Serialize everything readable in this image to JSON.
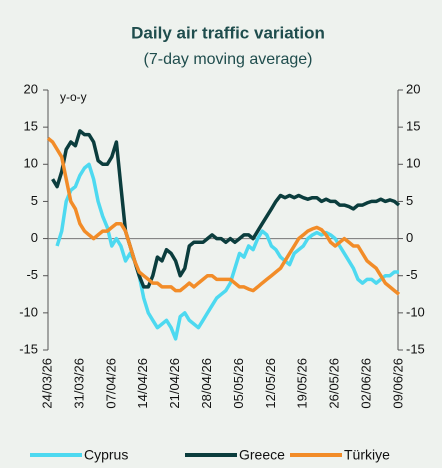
{
  "chart_data": {
    "type": "line",
    "title": "Daily air traffic variation",
    "subtitle": "(7-day moving average)",
    "y_label": "y-o-y",
    "categories": [
      "24/03/26",
      null,
      null,
      null,
      null,
      null,
      null,
      "31/03/26",
      null,
      null,
      null,
      null,
      null,
      null,
      "07/04/26",
      null,
      null,
      null,
      null,
      null,
      null,
      "14/04/26",
      null,
      null,
      null,
      null,
      null,
      null,
      "21/04/26",
      null,
      null,
      null,
      null,
      null,
      null,
      "28/04/26",
      null,
      null,
      null,
      null,
      null,
      null,
      "05/05/26",
      null,
      null,
      null,
      null,
      null,
      null,
      "12/05/26",
      null,
      null,
      null,
      null,
      null,
      null,
      "19/05/26",
      null,
      null,
      null,
      null,
      null,
      null,
      "26/05/26",
      null,
      null,
      null,
      null,
      null,
      null,
      "02/06/26",
      null,
      null,
      null,
      null,
      null,
      null,
      "09/06/26"
    ],
    "series": [
      {
        "name": "Cyprus",
        "color": "#4dd9f0",
        "values": [
          null,
          null,
          -1,
          1,
          5,
          6.5,
          7,
          8.5,
          9.5,
          10,
          8,
          5,
          3,
          1.5,
          -1,
          0,
          -1,
          -3,
          -2,
          -3,
          -5,
          -8,
          -10,
          -11,
          -12,
          -11.5,
          -11,
          -12,
          -13.5,
          -10.5,
          -10,
          -11,
          -11.5,
          -12,
          -11,
          -10,
          -9,
          -8,
          -7.5,
          -7,
          -6,
          -4,
          -2,
          -2.5,
          -1,
          -1.5,
          0,
          1,
          0.5,
          -1,
          -1.5,
          -2.5,
          -3,
          -3.5,
          -2,
          -1.5,
          -1,
          0,
          0.5,
          0.8,
          0.5,
          0.8,
          0.5,
          0,
          -1,
          -2,
          -3,
          -4,
          -5.5,
          -6,
          -5.5,
          -5.5,
          -6,
          -5.5,
          -5,
          -5,
          -4.5,
          -4.5
        ]
      },
      {
        "name": "Greece",
        "color": "#0b3d3d",
        "values": [
          null,
          8,
          7,
          9,
          12,
          13,
          12.5,
          14.5,
          14,
          14,
          13,
          10.5,
          10,
          10,
          11,
          13,
          7,
          1,
          -1,
          -3,
          -5,
          -6.5,
          -6.5,
          -5,
          -2.5,
          -3,
          -1.5,
          -2,
          -3,
          -5,
          -4,
          -1,
          -0.5,
          -0.5,
          -0.5,
          0,
          0.5,
          0,
          0,
          -0.5,
          0,
          -0.5,
          0,
          0.5,
          0.5,
          0,
          1,
          2,
          3,
          4,
          5,
          5.8,
          5.5,
          5.8,
          5.5,
          5.8,
          5.5,
          5.3,
          5.5,
          5.5,
          5,
          5.3,
          5,
          5,
          4.5,
          4.5,
          4.3,
          4,
          4.5,
          4.5,
          4.8,
          5,
          5,
          5.3,
          5,
          5.2,
          5,
          4.5
        ]
      },
      {
        "name": "Türkiye",
        "color": "#f28c28",
        "values": [
          13.5,
          13,
          12,
          11,
          8,
          5,
          4,
          2,
          1,
          0.5,
          0,
          0.5,
          1,
          1,
          1.5,
          2,
          2,
          1,
          -1,
          -3,
          -4.5,
          -5,
          -5.5,
          -6,
          -6,
          -6.5,
          -6.5,
          -6.5,
          -7,
          -7,
          -6.5,
          -6,
          -6.5,
          -6,
          -5.5,
          -5,
          -5,
          -5.5,
          -5.5,
          -5.5,
          -5.5,
          -6,
          -6.5,
          -6.5,
          -6.8,
          -7,
          -6.5,
          -6,
          -5.5,
          -5,
          -4.5,
          -4,
          -3,
          -2,
          -1,
          0,
          0.5,
          1,
          1.3,
          1.5,
          1.2,
          0.5,
          -0.5,
          -1,
          -0.5,
          0,
          -0.5,
          -1,
          -1,
          -2,
          -3,
          -3.5,
          -4,
          -5,
          -6,
          -6.5,
          -7,
          -7.5
        ]
      }
    ],
    "ylim": [
      -15,
      20
    ],
    "yticks": [
      -15,
      -10,
      -5,
      0,
      5,
      10,
      15,
      20
    ],
    "y2lim": [
      -15,
      20
    ],
    "y2ticks": [
      -15,
      -10,
      -5,
      0,
      5,
      10,
      15,
      20
    ],
    "legend": "bottom"
  }
}
